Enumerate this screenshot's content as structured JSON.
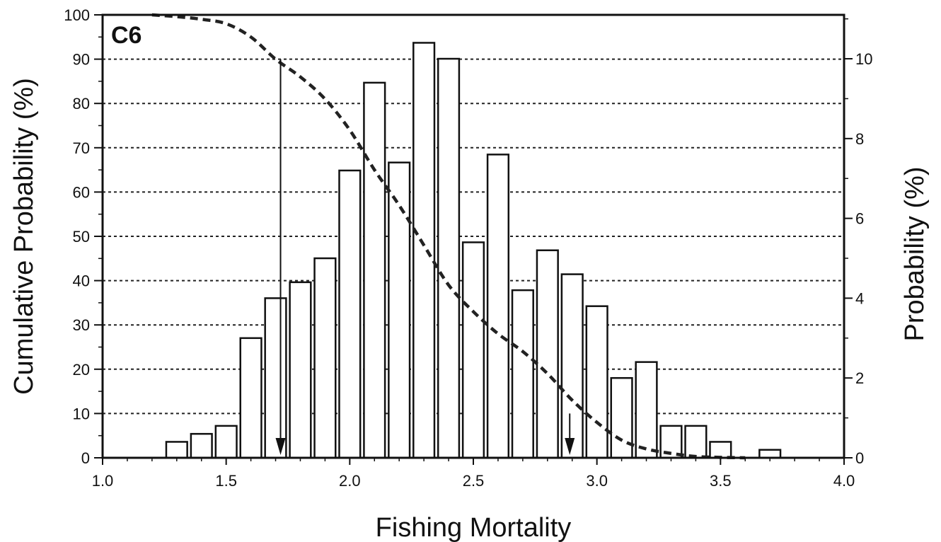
{
  "chart_data": {
    "type": "bar",
    "panel_label": "C6",
    "xlabel": "Fishing Mortality",
    "ylabel_left": "Cumulative Probability (%)",
    "ylabel_right": "Probability (%)",
    "xlim": [
      1.0,
      4.0
    ],
    "ylim_left": [
      0,
      100
    ],
    "ylim_right": [
      0,
      11.1
    ],
    "x_ticks": [
      1.0,
      1.5,
      2.0,
      2.5,
      3.0,
      3.5,
      4.0
    ],
    "x_tick_labels": [
      "1.0",
      "1.5",
      "2.0",
      "2.5",
      "3.0",
      "3.5",
      "4.0"
    ],
    "y_left_ticks": [
      0,
      10,
      20,
      30,
      40,
      50,
      60,
      70,
      80,
      90,
      100
    ],
    "y_left_tick_labels": [
      "0",
      "10",
      "20",
      "30",
      "40",
      "50",
      "60",
      "70",
      "80",
      "90",
      "100"
    ],
    "y_right_ticks": [
      0,
      2,
      4,
      6,
      8,
      10
    ],
    "y_right_tick_labels": [
      "0",
      "2",
      "4",
      "6",
      "8",
      "10"
    ],
    "grid": "horizontal dotted at left-axis ticks",
    "bar_width": 0.085,
    "series": [
      {
        "axis": "right",
        "x": [
          1.3,
          1.4,
          1.5,
          1.6,
          1.7,
          1.8,
          1.9,
          2.0,
          2.1,
          2.2,
          2.3,
          2.4,
          2.5,
          2.6,
          2.7,
          2.8,
          2.9,
          3.0,
          3.1,
          3.2,
          3.3,
          3.4,
          3.5,
          3.7
        ],
        "values": [
          0.4,
          0.6,
          0.8,
          3.0,
          4.0,
          4.4,
          5.0,
          7.2,
          9.4,
          7.4,
          10.4,
          10.0,
          5.4,
          7.6,
          4.2,
          5.2,
          4.6,
          3.8,
          2.0,
          2.4,
          0.8,
          0.8,
          0.4,
          0.2
        ]
      },
      {
        "axis": "left",
        "style": "dashed",
        "type": "line",
        "x": [
          1.2,
          1.3,
          1.4,
          1.5,
          1.6,
          1.7,
          1.8,
          1.9,
          2.0,
          2.1,
          2.2,
          2.3,
          2.4,
          2.5,
          2.6,
          2.7,
          2.8,
          2.9,
          3.0,
          3.1,
          3.2,
          3.3,
          3.4,
          3.5,
          3.6
        ],
        "values": [
          100,
          99.6,
          99,
          98,
          95,
          90,
          86,
          81,
          74,
          65,
          57,
          48,
          39,
          33,
          28,
          24,
          19,
          13,
          8,
          4,
          2,
          1,
          0.3,
          0.1,
          0
        ]
      }
    ],
    "annotations": [
      {
        "type": "arrow",
        "x": 1.72,
        "from_y": 90,
        "to_y": 0
      },
      {
        "type": "arrow",
        "x": 2.89,
        "from_y": 10,
        "to_y": 0
      }
    ]
  }
}
